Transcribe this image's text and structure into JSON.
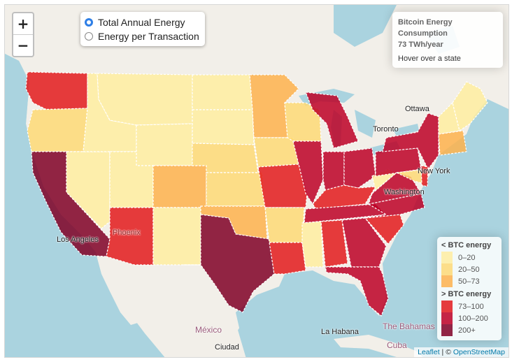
{
  "zoom": {
    "in_label": "+",
    "out_label": "−"
  },
  "modes": {
    "options": [
      {
        "label": "Total Annual Energy",
        "selected": true
      },
      {
        "label": "Energy per Transaction",
        "selected": false
      }
    ]
  },
  "info": {
    "title": "Bitcoin Energy Consumption",
    "value": "73 TWh/year",
    "hint": "Hover over a state"
  },
  "legend": {
    "low_title": "< BTC energy",
    "high_title": "> BTC energy",
    "low": [
      {
        "label": "0–20",
        "color": "#ffeda0"
      },
      {
        "label": "20–50",
        "color": "#fed976"
      },
      {
        "label": "50–73",
        "color": "#feb24c"
      }
    ],
    "high": [
      {
        "label": "73–100",
        "color": "#e31a1c"
      },
      {
        "label": "100–200",
        "color": "#bd0026"
      },
      {
        "label": "200+",
        "color": "#800026"
      }
    ]
  },
  "places": {
    "ottawa": "Ottawa",
    "toronto": "Toronto",
    "new_york": "New York",
    "washington": "Washington",
    "phoenix": "Phoenix",
    "los_angeles": "Los Angeles",
    "mexico": "México",
    "ciudad": "Ciudad",
    "la_habana": "La Habana",
    "bahamas": "The Bahamas",
    "cuba": "Cuba"
  },
  "attribution": {
    "leaflet": "Leaflet",
    "sep": " | © ",
    "osm": "OpenStreetMap"
  }
}
